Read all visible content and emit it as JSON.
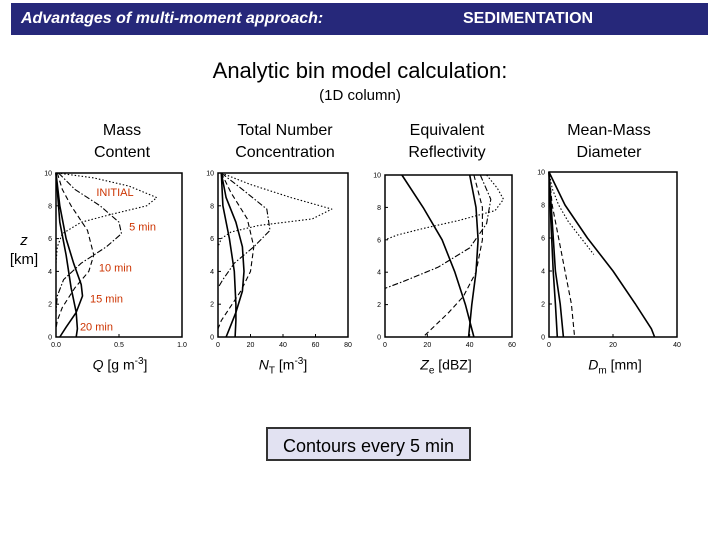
{
  "header": {
    "left": "Advantages of multi-moment approach:",
    "right": "SEDIMENTATION"
  },
  "title": "Analytic bin model calculation:",
  "subtitle": "(1D column)",
  "panels": [
    {
      "heading": [
        "Mass",
        "Content"
      ],
      "xlabel_var": "Q",
      "xlabel_sub": "",
      "xlabel_unit": " [g m",
      "xlabel_sup": "-3",
      "xlabel_end": "]"
    },
    {
      "heading": [
        "Total Number",
        "Concentration"
      ],
      "xlabel_var": "N",
      "xlabel_sub": "T",
      "xlabel_unit": " [m",
      "xlabel_sup": "-3",
      "xlabel_end": "]"
    },
    {
      "heading": [
        "Equivalent",
        "Reflectivity"
      ],
      "xlabel_var": "Z",
      "xlabel_sub": "e",
      "xlabel_unit": " [dBZ]",
      "xlabel_sup": "",
      "xlabel_end": ""
    },
    {
      "heading": [
        "Mean-Mass",
        "Diameter"
      ],
      "xlabel_var": "D",
      "xlabel_sub": "m",
      "xlabel_unit": " [mm]",
      "xlabel_sup": "",
      "xlabel_end": ""
    }
  ],
  "zaxis": {
    "line1": "z",
    "line2": "[km]"
  },
  "contours_note": "Contours every 5 min",
  "chart_data": [
    {
      "type": "line",
      "ylim": [
        0,
        10
      ],
      "yticks": [
        "0",
        "2",
        "4",
        "6",
        "8",
        "10"
      ],
      "xlim": [
        0,
        1.0
      ],
      "xticks": [
        0,
        0.5,
        1.0
      ],
      "xticklabels": [
        "0.0",
        "0.5",
        "1.0"
      ],
      "annotations": [
        {
          "text": "INITIAL",
          "x": 0.32,
          "y": 8.6
        },
        {
          "text": "5 min",
          "x": 0.58,
          "y": 6.5
        },
        {
          "text": "10 min",
          "x": 0.34,
          "y": 4.0
        },
        {
          "text": "15 min",
          "x": 0.27,
          "y": 2.1
        },
        {
          "text": "20 min",
          "x": 0.19,
          "y": 0.4
        }
      ],
      "series": [
        {
          "style": "dotted",
          "points": [
            [
              0.01,
              10
            ],
            [
              0.3,
              9.7
            ],
            [
              0.58,
              9.2
            ],
            [
              0.8,
              8.5
            ],
            [
              0.72,
              8.0
            ],
            [
              0.45,
              7.5
            ],
            [
              0.2,
              7.0
            ],
            [
              0.05,
              6.3
            ],
            [
              0.01,
              5.5
            ],
            [
              0,
              4.5
            ]
          ]
        },
        {
          "style": "dashdot",
          "points": [
            [
              0.02,
              10
            ],
            [
              0.15,
              9
            ],
            [
              0.35,
              8
            ],
            [
              0.5,
              7
            ],
            [
              0.52,
              6.3
            ],
            [
              0.4,
              5.5
            ],
            [
              0.2,
              4.5
            ],
            [
              0.06,
              3.5
            ],
            [
              0.01,
              2.5
            ],
            [
              0,
              1.5
            ]
          ]
        },
        {
          "style": "dashed",
          "points": [
            [
              0.01,
              10
            ],
            [
              0.05,
              9
            ],
            [
              0.12,
              8
            ],
            [
              0.25,
              6.5
            ],
            [
              0.3,
              5
            ],
            [
              0.26,
              4
            ],
            [
              0.15,
              3
            ],
            [
              0.05,
              1.8
            ],
            [
              0.01,
              1
            ],
            [
              0,
              0.5
            ]
          ]
        },
        {
          "style": "solid",
          "points": [
            [
              0,
              10
            ],
            [
              0.03,
              8
            ],
            [
              0.08,
              6
            ],
            [
              0.14,
              4.5
            ],
            [
              0.2,
              3.2
            ],
            [
              0.21,
              2.5
            ],
            [
              0.16,
              1.5
            ],
            [
              0.08,
              0.6
            ],
            [
              0.03,
              0
            ]
          ]
        },
        {
          "style": "solid",
          "points": [
            [
              0,
              10
            ],
            [
              0.03,
              7
            ],
            [
              0.08,
              5
            ],
            [
              0.12,
              3
            ],
            [
              0.16,
              1.5
            ],
            [
              0.17,
              0.5
            ],
            [
              0.16,
              0
            ]
          ]
        }
      ]
    },
    {
      "type": "line",
      "ylim": [
        0,
        10
      ],
      "yticks": [
        "0",
        "2",
        "4",
        "6",
        "8",
        "10"
      ],
      "xlim": [
        0,
        80
      ],
      "xticks": [
        0,
        20,
        40,
        60,
        80
      ],
      "xticklabels": [
        "0",
        "20",
        "40",
        "60",
        "80"
      ],
      "series": [
        {
          "style": "dotted",
          "points": [
            [
              2,
              10
            ],
            [
              20,
              9.3
            ],
            [
              45,
              8.5
            ],
            [
              70,
              7.8
            ],
            [
              58,
              7.2
            ],
            [
              25,
              6.8
            ],
            [
              8,
              6.4
            ],
            [
              2,
              6
            ],
            [
              0,
              5.5
            ]
          ]
        },
        {
          "style": "dashdot",
          "points": [
            [
              2,
              10
            ],
            [
              15,
              9
            ],
            [
              30,
              7.8
            ],
            [
              32,
              6.5
            ],
            [
              22,
              5.5
            ],
            [
              10,
              4.5
            ],
            [
              3,
              3.5
            ],
            [
              0,
              3
            ]
          ]
        },
        {
          "style": "dashed",
          "points": [
            [
              2,
              10
            ],
            [
              8,
              8.8
            ],
            [
              18,
              7.2
            ],
            [
              22,
              5.5
            ],
            [
              20,
              4
            ],
            [
              14,
              2.8
            ],
            [
              6,
              1.6
            ],
            [
              2,
              1
            ],
            [
              0,
              0.5
            ]
          ]
        },
        {
          "style": "solid",
          "points": [
            [
              2,
              10
            ],
            [
              5,
              8.5
            ],
            [
              11,
              7
            ],
            [
              15,
              5.5
            ],
            [
              16,
              4
            ],
            [
              15,
              2.8
            ],
            [
              11,
              1.5
            ],
            [
              7,
              0.5
            ],
            [
              5,
              0
            ]
          ]
        },
        {
          "style": "solid",
          "points": [
            [
              2,
              10
            ],
            [
              3,
              8
            ],
            [
              7,
              6
            ],
            [
              10,
              4
            ],
            [
              11,
              2
            ],
            [
              11,
              1
            ],
            [
              10.5,
              0
            ]
          ]
        }
      ]
    },
    {
      "type": "line",
      "ylim": [
        0,
        10
      ],
      "yticks": [
        "0",
        "2",
        "4",
        "6",
        "8",
        "10"
      ],
      "xlim": [
        0,
        60
      ],
      "xticks": [
        0,
        20,
        40,
        60
      ],
      "xticklabels": [
        "0",
        "20",
        "40",
        "60"
      ],
      "series": [
        {
          "style": "dotted",
          "points": [
            [
              48,
              10
            ],
            [
              53,
              9.2
            ],
            [
              56,
              8.5
            ],
            [
              52,
              7.8
            ],
            [
              35,
              7.2
            ],
            [
              18,
              6.7
            ],
            [
              6,
              6.3
            ],
            [
              0,
              6
            ]
          ]
        },
        {
          "style": "dashdot",
          "points": [
            [
              45,
              10
            ],
            [
              50,
              8.5
            ],
            [
              48,
              7
            ],
            [
              40,
              5.5
            ],
            [
              25,
              4.3
            ],
            [
              10,
              3.5
            ],
            [
              0,
              3
            ]
          ]
        },
        {
          "style": "dashed",
          "points": [
            [
              42,
              10
            ],
            [
              46,
              8
            ],
            [
              46,
              6
            ],
            [
              43,
              4
            ],
            [
              37,
              2.5
            ],
            [
              30,
              1.5
            ],
            [
              22,
              0.5
            ],
            [
              18,
              0
            ]
          ]
        },
        {
          "style": "solid",
          "points": [
            [
              40,
              10
            ],
            [
              43,
              8
            ],
            [
              44,
              6
            ],
            [
              43,
              4
            ],
            [
              41,
              2
            ],
            [
              39.5,
              0
            ]
          ]
        },
        {
          "style": "solid",
          "points": [
            [
              8,
              10
            ],
            [
              18,
              8
            ],
            [
              27,
              6
            ],
            [
              33,
              4
            ],
            [
              38,
              2
            ],
            [
              42,
              0
            ]
          ]
        }
      ]
    },
    {
      "type": "line",
      "ylim": [
        0,
        10
      ],
      "yticks": [
        "0",
        "2",
        "4",
        "6",
        "8",
        "10"
      ],
      "xlim": [
        0,
        40
      ],
      "xticks": [
        0,
        20,
        40
      ],
      "xticklabels": [
        "0",
        "20",
        "40"
      ],
      "series": [
        {
          "style": "solid",
          "points": [
            [
              0,
              10
            ],
            [
              5,
              8
            ],
            [
              12,
              6
            ],
            [
              20,
              4
            ],
            [
              27,
              2
            ],
            [
              32,
              0.5
            ],
            [
              33,
              0
            ]
          ]
        },
        {
          "style": "dotted",
          "points": [
            [
              0,
              10
            ],
            [
              1,
              9
            ],
            [
              3,
              8
            ],
            [
              6,
              7
            ],
            [
              10,
              6
            ],
            [
              14,
              5
            ]
          ]
        },
        {
          "style": "dashed",
          "points": [
            [
              0,
              10
            ],
            [
              1,
              8
            ],
            [
              3,
              6
            ],
            [
              5,
              4
            ],
            [
              7,
              2
            ],
            [
              8,
              0
            ]
          ]
        },
        {
          "style": "solid",
          "points": [
            [
              0,
              10
            ],
            [
              1,
              7
            ],
            [
              2,
              4
            ],
            [
              3.5,
              2
            ],
            [
              4.5,
              0
            ]
          ]
        },
        {
          "style": "solid",
          "points": [
            [
              0,
              10
            ],
            [
              0.6,
              7
            ],
            [
              1.3,
              4
            ],
            [
              2,
              2
            ],
            [
              2.6,
              0
            ]
          ]
        }
      ]
    }
  ]
}
